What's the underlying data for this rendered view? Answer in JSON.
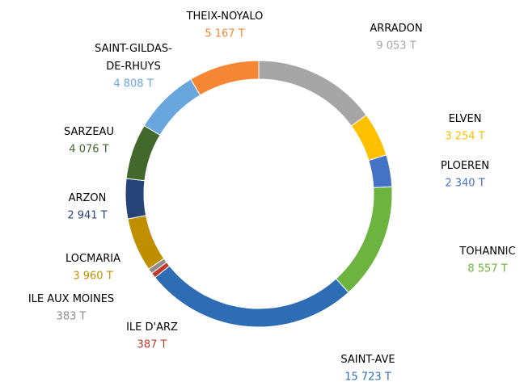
{
  "chart_data": {
    "type": "donut",
    "categories": [
      "ARRADON",
      "ELVEN",
      "PLOEREN",
      "TOHANNIC",
      "SAINT-AVE",
      "ILE D'ARZ",
      "ILE AUX MOINES",
      "LOCMARIA",
      "ARZON",
      "SARZEAU",
      "SAINT-GILDAS-\nDE-RHUYS",
      "THEIX-NOYALO"
    ],
    "values": [
      9053,
      3254,
      2340,
      8557,
      15723,
      387,
      383,
      3960,
      2941,
      4076,
      4808,
      5167
    ],
    "value_labels": [
      "9 053 T",
      "3 254 T",
      "2 340 T",
      "8 557 T",
      "15 723 T",
      "387 T",
      "383 T",
      "3 960 T",
      "2 941 T",
      "4 076 T",
      "4 808 T",
      "5 167 T"
    ],
    "colors": [
      "#a5a5a5",
      "#ffc000",
      "#4472c4",
      "#6cb33f",
      "#2e6db4",
      "#c0392b",
      "#8c8c8c",
      "#bf8f00",
      "#264478",
      "#43682b",
      "#69a6dd",
      "#f58634"
    ]
  }
}
